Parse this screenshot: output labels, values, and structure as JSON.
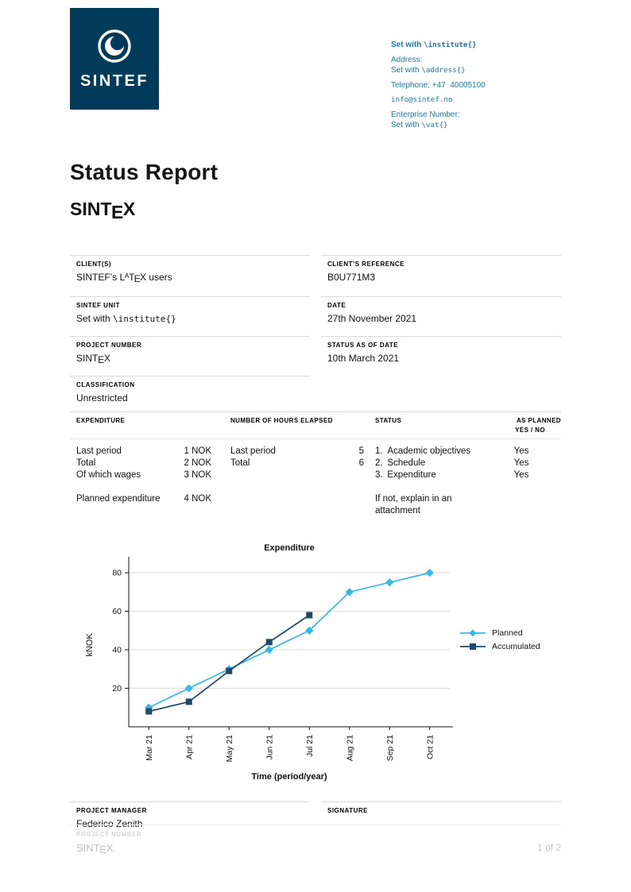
{
  "brand": {
    "logo_text": "SINTEF",
    "navy": "#003c5a",
    "teal": "#1b7aa6"
  },
  "contact": {
    "institute_pre": "Set with ",
    "institute_code": "\\institute{}",
    "address_label": "Address:",
    "address_pre": "Set with ",
    "address_code": "\\address{}",
    "phone_label": "Telephone:",
    "phone_value": "+47  40005100",
    "email": "info@sintef.no",
    "enterprise_label": "Enterprise Number:",
    "vat_pre": "Set with ",
    "vat_code": "\\vat{}"
  },
  "title": "Status Report",
  "sintex": {
    "pre": "SINT",
    "e": "E",
    "post": "X"
  },
  "latex": {
    "l": "L",
    "a": "A",
    "t": "T",
    "e": "E",
    "x": "X"
  },
  "fields": {
    "clients": {
      "label": "CLIENT(S)",
      "value_pre": "SINTEF’s ",
      "value_post": " users"
    },
    "client_reference": {
      "label": "CLIENT’S REFERENCE",
      "value": "B0U771M3"
    },
    "unit": {
      "label": "SINTEF UNIT",
      "value_pre": "Set with ",
      "value_code": "\\institute{}"
    },
    "date": {
      "label": "DATE",
      "value": "27th November 2021"
    },
    "project_number": {
      "label": "PROJECT NUMBER"
    },
    "status_date": {
      "label": "STATUS AS OF DATE",
      "value": "10th March 2021"
    },
    "classification": {
      "label": "CLASSIFICATION",
      "value": "Unrestricted"
    }
  },
  "table": {
    "headers": {
      "expenditure": "EXPENDITURE",
      "hours": "NUMBER OF HOURS ELAPSED",
      "status": "STATUS",
      "planned1": "AS PLANNED",
      "planned2": "YES / NO"
    },
    "expenditure_rows": [
      {
        "label": "Last period",
        "value": "1 NOK"
      },
      {
        "label": "Total",
        "value": "2 NOK"
      },
      {
        "label": "Of which wages",
        "value": "3 NOK"
      },
      {
        "label": "Planned expenditure",
        "value": "4 NOK"
      }
    ],
    "hours_rows": [
      {
        "label": "Last period",
        "value": "5"
      },
      {
        "label": "Total",
        "value": "6"
      }
    ],
    "status_rows": [
      "1. Academic objectives",
      "2. Schedule",
      "3. Expenditure"
    ],
    "status_note": "If not, explain in an attachment",
    "as_planned": [
      "Yes",
      "Yes",
      "Yes"
    ]
  },
  "chart_data": {
    "type": "line",
    "title": "Expenditure",
    "xlabel": "Time (period/year)",
    "ylabel": "kNOK",
    "categories": [
      "Mar 21",
      "Apr 21",
      "May 21",
      "Jun 21",
      "Jul 21",
      "Aug 21",
      "Sep 21",
      "Oct 21"
    ],
    "series": [
      {
        "name": "Planned",
        "color": "#33b8ea",
        "marker": "diamond",
        "values": [
          10,
          20,
          30,
          40,
          50,
          70,
          75,
          80
        ]
      },
      {
        "name": "Accumulated",
        "color": "#1c4a68",
        "marker": "square",
        "values": [
          8,
          13,
          29,
          44,
          58
        ]
      }
    ],
    "ylim": [
      0,
      85
    ],
    "yticks": [
      20,
      40,
      60,
      80
    ],
    "grid": true,
    "legend_position": "right"
  },
  "manager": {
    "label": "PROJECT MANAGER",
    "value": "Federico Zenith",
    "signature_label": "SIGNATURE"
  },
  "footer": {
    "project_number_label": "PROJECT NUMBER",
    "page": "1 of 2"
  }
}
